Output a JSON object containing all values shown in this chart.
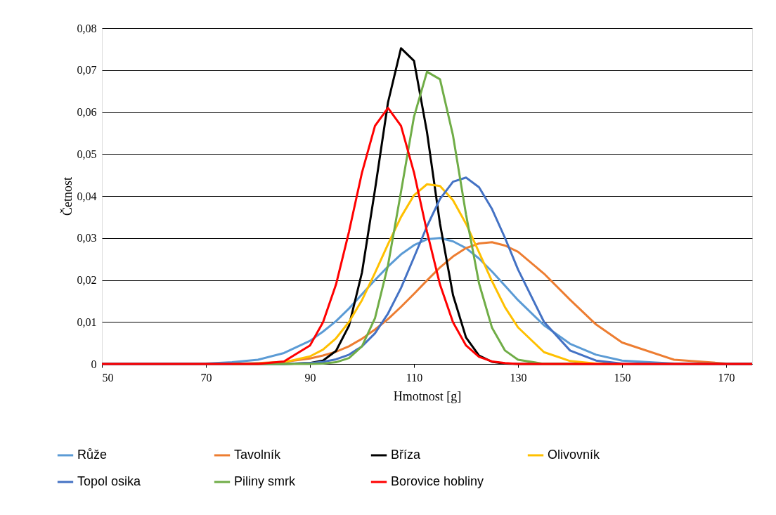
{
  "chart_data": {
    "type": "line",
    "xlabel": "Hmotnost [g]",
    "ylabel": "Četnost",
    "x": [
      50,
      60,
      70,
      75,
      80,
      85,
      90,
      92.5,
      95,
      97.5,
      100,
      102.5,
      105,
      107.5,
      110,
      112.5,
      115,
      117.5,
      120,
      122.5,
      125,
      127.5,
      130,
      135,
      140,
      145,
      150,
      160,
      170,
      175
    ],
    "series": [
      {
        "name": "Růže",
        "color": "#5b9bd5",
        "values": [
          0,
          0,
          0.0001,
          0.0004,
          0.001,
          0.0026,
          0.0055,
          0.0077,
          0.0102,
          0.0132,
          0.0166,
          0.02,
          0.0232,
          0.0261,
          0.0283,
          0.0297,
          0.03,
          0.0292,
          0.0276,
          0.0251,
          0.022,
          0.0186,
          0.0152,
          0.0092,
          0.0048,
          0.0022,
          0.0008,
          0.0001,
          0,
          0
        ]
      },
      {
        "name": "Tavolník",
        "color": "#ed7d31",
        "values": [
          null,
          null,
          null,
          0,
          0.0002,
          0.0005,
          0.0013,
          0.002,
          0.0029,
          0.0042,
          0.006,
          0.0082,
          0.0107,
          0.0136,
          0.0167,
          0.0199,
          0.023,
          0.0256,
          0.0276,
          0.0287,
          0.029,
          0.0282,
          0.0267,
          0.0215,
          0.0153,
          0.0094,
          0.0051,
          0.001,
          0.0001,
          0
        ]
      },
      {
        "name": "Bříza",
        "color": "#000000",
        "values": [
          0,
          0,
          0,
          0,
          0,
          0,
          0.0002,
          0.0008,
          0.0031,
          0.0091,
          0.0218,
          0.0415,
          0.0623,
          0.0752,
          0.0722,
          0.0552,
          0.0334,
          0.0164,
          0.0063,
          0.002,
          0.0005,
          0.0001,
          0,
          0,
          0,
          0,
          0,
          0,
          0,
          0
        ]
      },
      {
        "name": "Olivovník",
        "color": "#ffc000",
        "values": [
          null,
          null,
          null,
          null,
          0.0001,
          0.0004,
          0.0018,
          0.0034,
          0.0061,
          0.01,
          0.0152,
          0.0217,
          0.0285,
          0.035,
          0.0402,
          0.0428,
          0.0424,
          0.039,
          0.0334,
          0.0266,
          0.0197,
          0.0135,
          0.0087,
          0.0028,
          0.0007,
          0.0001,
          0,
          null,
          null,
          null
        ]
      },
      {
        "name": "Topol osika",
        "color": "#4472c4",
        "values": [
          0,
          0,
          0,
          0,
          0,
          0,
          0.0002,
          0.0005,
          0.0011,
          0.0022,
          0.0042,
          0.0073,
          0.012,
          0.0181,
          0.0254,
          0.0328,
          0.0393,
          0.0434,
          0.0444,
          0.0421,
          0.0369,
          0.03,
          0.0225,
          0.01,
          0.0032,
          0.0008,
          0.0001,
          0,
          0,
          0
        ]
      },
      {
        "name": "Piliny smrk",
        "color": "#70ad47",
        "values": [
          null,
          null,
          null,
          0,
          0,
          0,
          0,
          0.0001,
          0.0004,
          0.0014,
          0.0042,
          0.0109,
          0.0235,
          0.041,
          0.0589,
          0.0696,
          0.0678,
          0.0544,
          0.0356,
          0.0192,
          0.0086,
          0.0032,
          0.001,
          0,
          0,
          null,
          null,
          null,
          null,
          null
        ]
      },
      {
        "name": "Borovice hobliny",
        "color": "#ff0000",
        "values": [
          0,
          0,
          0,
          0,
          0,
          0.0006,
          0.0044,
          0.0099,
          0.0189,
          0.0315,
          0.0456,
          0.0567,
          0.061,
          0.0567,
          0.0456,
          0.0315,
          0.0189,
          0.0099,
          0.0044,
          0.0017,
          0.0006,
          0.0002,
          0,
          0,
          0,
          0,
          0,
          0,
          0,
          0
        ]
      }
    ],
    "xlim": [
      50,
      175
    ],
    "xticks": [
      50,
      70,
      90,
      110,
      130,
      150,
      170
    ],
    "ylim": [
      0,
      0.08
    ],
    "yticks": [
      0,
      {
        "value": 0.01,
        "label": "0,01"
      },
      {
        "value": 0.02,
        "label": "0,02"
      },
      {
        "value": 0.03,
        "label": "0,03"
      },
      {
        "value": 0.04,
        "label": "0,04"
      },
      {
        "value": 0.05,
        "label": "0,05"
      },
      {
        "value": 0.06,
        "label": "0,06"
      },
      {
        "value": 0.07,
        "label": "0,07"
      },
      {
        "value": 0.08,
        "label": "0,08"
      }
    ],
    "grid": "y",
    "legend": "bottom",
    "marker": "none",
    "line_style": "solid"
  }
}
